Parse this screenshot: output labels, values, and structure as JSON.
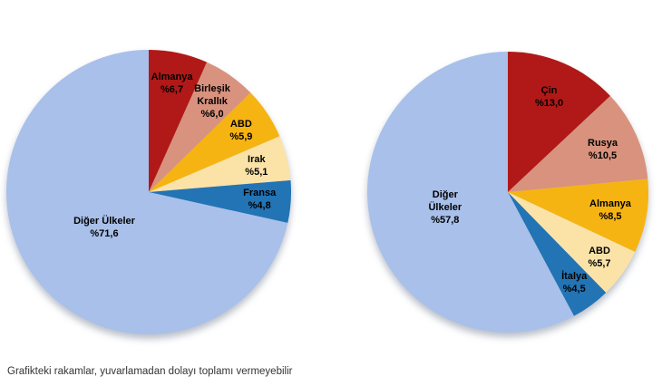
{
  "footnote": "Grafikteki rakamlar, yuvarlamadan dolayı toplamı vermeyebilir",
  "palette": {
    "dark_red": "#B01917",
    "salmon": "#D8927E",
    "gold": "#F6B413",
    "cream": "#FBE3A8",
    "blue": "#2274B5",
    "periwinkle": "#A8C0EA"
  },
  "chart_data": [
    {
      "type": "pie",
      "title": "",
      "start_angle_deg": 0,
      "direction": "clockwise",
      "legend_position": "none",
      "labels_inside": true,
      "slices": [
        {
          "label": "Almanya",
          "label_lines": [
            "Almanya"
          ],
          "pct_text": "%6,7",
          "value": 6.7,
          "color": "#B01917",
          "label_r_frac": 0.78
        },
        {
          "label": "Birleşik Krallık",
          "label_lines": [
            "Birleşik",
            "Krallık"
          ],
          "pct_text": "%6,0",
          "value": 6.0,
          "color": "#D8927E",
          "label_r_frac": 0.78
        },
        {
          "label": "ABD",
          "label_lines": [
            "ABD"
          ],
          "pct_text": "%5,9",
          "value": 5.9,
          "color": "#F6B413",
          "label_r_frac": 0.78
        },
        {
          "label": "Irak",
          "label_lines": [
            "Irak"
          ],
          "pct_text": "%5,1",
          "value": 5.1,
          "color": "#FBE3A8",
          "label_r_frac": 0.78
        },
        {
          "label": "Fransa",
          "label_lines": [
            "Fransa"
          ],
          "pct_text": "%4,8",
          "value": 4.8,
          "color": "#2274B5",
          "label_r_frac": 0.78
        },
        {
          "label": "Diğer Ülkeler",
          "label_lines": [
            "Diğer Ülkeler"
          ],
          "pct_text": "%71,6",
          "value": 71.6,
          "color": "#A8C0EA",
          "label_r_frac": 0.4
        }
      ]
    },
    {
      "type": "pie",
      "title": "",
      "start_angle_deg": 0,
      "direction": "clockwise",
      "legend_position": "none",
      "labels_inside": true,
      "slices": [
        {
          "label": "Çin",
          "label_lines": [
            "Çin"
          ],
          "pct_text": "%13,0",
          "value": 13.0,
          "color": "#B01917",
          "label_r_frac": 0.74
        },
        {
          "label": "Rusya",
          "label_lines": [
            "Rusya"
          ],
          "pct_text": "%10,5",
          "value": 10.5,
          "color": "#D8927E",
          "label_r_frac": 0.74
        },
        {
          "label": "Almanya",
          "label_lines": [
            "Almanya"
          ],
          "pct_text": "%8,5",
          "value": 8.5,
          "color": "#F6B413",
          "label_r_frac": 0.74
        },
        {
          "label": "ABD",
          "label_lines": [
            "ABD"
          ],
          "pct_text": "%5,7",
          "value": 5.7,
          "color": "#FBE3A8",
          "label_r_frac": 0.8
        },
        {
          "label": "İtalya",
          "label_lines": [
            "İtalya"
          ],
          "pct_text": "%4,5",
          "value": 4.5,
          "color": "#2274B5",
          "label_r_frac": 0.8
        },
        {
          "label": "Diğer Ülkeler",
          "label_lines": [
            "Diğer",
            "Ülkeler"
          ],
          "pct_text": "%57,8",
          "value": 57.8,
          "color": "#A8C0EA",
          "label_r_frac": 0.46
        }
      ]
    }
  ]
}
